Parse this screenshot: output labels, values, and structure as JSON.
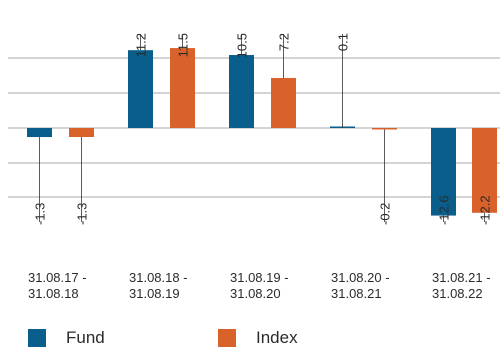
{
  "chart_data": {
    "type": "bar",
    "categories": [
      "31.08.17 -\n31.08.18",
      "31.08.18 -\n31.08.19",
      "31.08.19 -\n31.08.20",
      "31.08.20 -\n31.08.21",
      "31.08.21 -\n31.08.22"
    ],
    "series": [
      {
        "name": "Fund",
        "values": [
          -1.3,
          11.2,
          10.5,
          0.1,
          -12.6
        ],
        "color": "#0a5e8c"
      },
      {
        "name": "Index",
        "values": [
          -1.3,
          11.5,
          7.2,
          -0.2,
          -12.2
        ],
        "color": "#d9622b"
      }
    ],
    "value_labels": {
      "Fund": [
        "-1.3",
        "11.2",
        "10.5",
        "0.1",
        "-12.6"
      ],
      "Index": [
        "-1.3",
        "11.5",
        "7.2",
        "-0.2",
        "-12.2"
      ]
    },
    "grid": true,
    "legend_position": "bottom"
  }
}
